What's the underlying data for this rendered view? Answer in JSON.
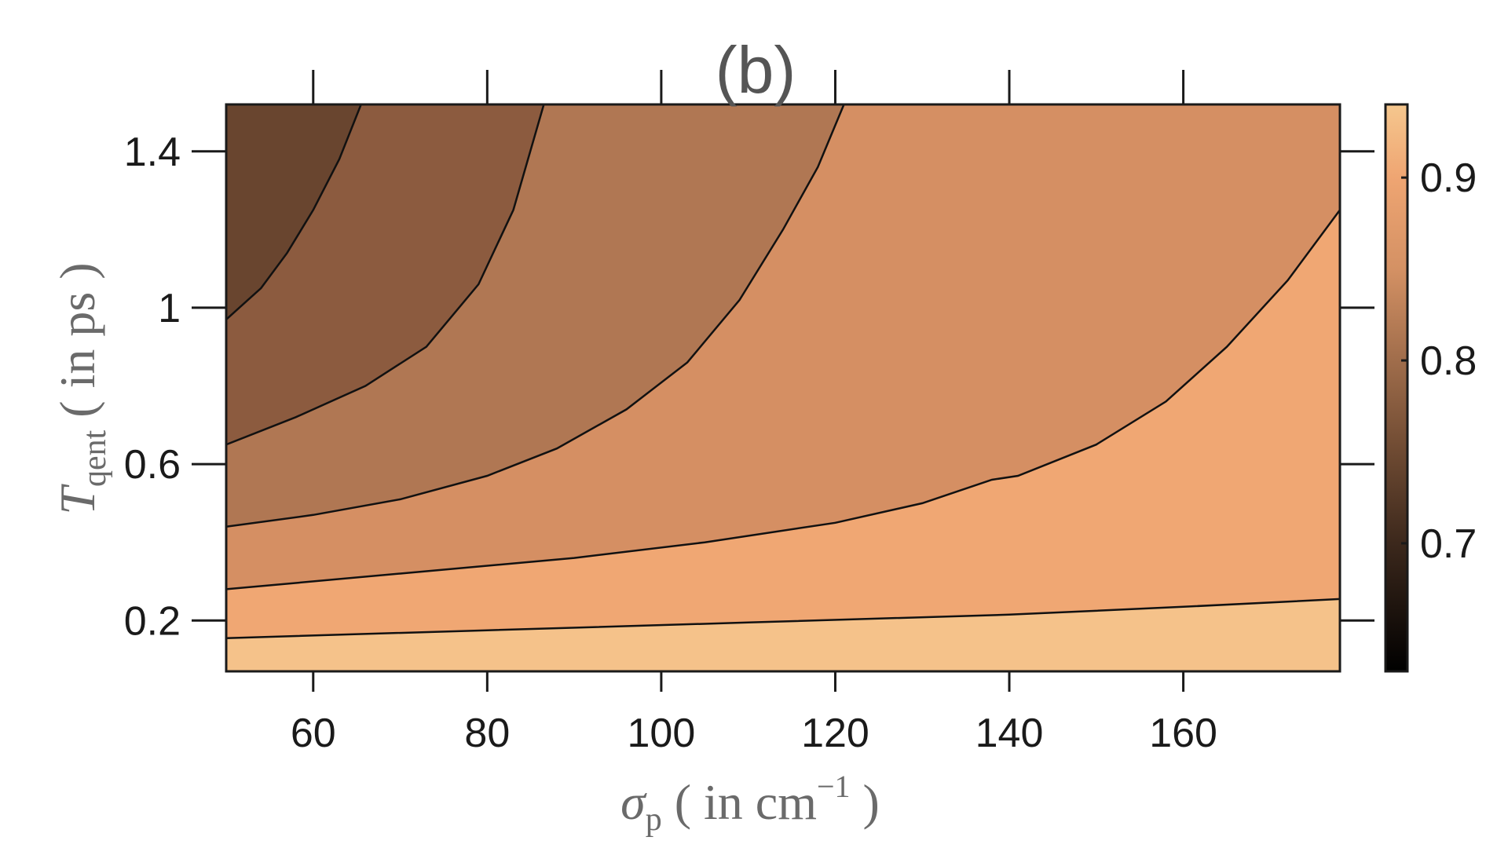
{
  "chart_data": {
    "type": "contour",
    "title": "(b)",
    "xlabel": {
      "main": "σ",
      "sub": "p",
      "rest": " ( in cm",
      "sup": "−1",
      "close": " )"
    },
    "ylabel": {
      "main": "T",
      "sub": "qent",
      "rest": " ( in ps )"
    },
    "xlim": [
      50,
      178
    ],
    "ylim": [
      0.07,
      1.52
    ],
    "xticks": [
      60,
      80,
      100,
      120,
      140,
      160
    ],
    "xtick_labels": [
      "60",
      "80",
      "100",
      "120",
      "140",
      "160"
    ],
    "yticks": [
      0.2,
      0.6,
      1.0,
      1.4
    ],
    "ytick_labels": [
      "0.2",
      "0.6",
      "1",
      "1.4"
    ],
    "colorbar": {
      "range": [
        0.63,
        0.94
      ],
      "ticks": [
        0.7,
        0.8,
        0.9
      ],
      "tick_labels": [
        "0.7",
        "0.8",
        "0.9"
      ],
      "stops": [
        {
          "v": 0.63,
          "color": "#000000"
        },
        {
          "v": 0.7,
          "color": "#3c281c"
        },
        {
          "v": 0.75,
          "color": "#6e4a32"
        },
        {
          "v": 0.8,
          "color": "#a06d4b"
        },
        {
          "v": 0.85,
          "color": "#d49164"
        },
        {
          "v": 0.9,
          "color": "#efa572"
        },
        {
          "v": 0.94,
          "color": "#f5c78e"
        }
      ]
    },
    "grid": false,
    "contour_levels": [
      {
        "level": 0.75,
        "fill_above": "#69452f",
        "points": [
          [
            50,
            0.97
          ],
          [
            54,
            1.05
          ],
          [
            57,
            1.14
          ],
          [
            60,
            1.25
          ],
          [
            63,
            1.38
          ],
          [
            65.5,
            1.52
          ]
        ]
      },
      {
        "level": 0.8,
        "fill_above": "#8c5b3f",
        "points": [
          [
            50,
            0.65
          ],
          [
            58,
            0.72
          ],
          [
            66,
            0.8
          ],
          [
            73,
            0.9
          ],
          [
            79,
            1.06
          ],
          [
            83,
            1.25
          ],
          [
            86.5,
            1.52
          ]
        ]
      },
      {
        "level": 0.85,
        "fill_above": "#b07753",
        "points": [
          [
            50,
            0.44
          ],
          [
            60,
            0.47
          ],
          [
            70,
            0.51
          ],
          [
            80,
            0.57
          ],
          [
            88,
            0.64
          ],
          [
            96,
            0.74
          ],
          [
            103,
            0.86
          ],
          [
            109,
            1.02
          ],
          [
            114,
            1.2
          ],
          [
            118,
            1.36
          ],
          [
            121,
            1.52
          ]
        ]
      },
      {
        "level": 0.9,
        "fill_above": "#d58f63",
        "points": [
          [
            50,
            0.28
          ],
          [
            70,
            0.32
          ],
          [
            90,
            0.36
          ],
          [
            105,
            0.4
          ],
          [
            120,
            0.45
          ],
          [
            130,
            0.5
          ],
          [
            138,
            0.56
          ],
          [
            141,
            0.57
          ],
          [
            150,
            0.65
          ],
          [
            158,
            0.76
          ],
          [
            165,
            0.9
          ],
          [
            172,
            1.07
          ],
          [
            178,
            1.25
          ]
        ]
      },
      {
        "level": 0.92,
        "fill_above": "#f0a773",
        "points": [
          [
            50,
            0.155
          ],
          [
            80,
            0.175
          ],
          [
            110,
            0.195
          ],
          [
            140,
            0.215
          ],
          [
            160,
            0.235
          ],
          [
            178,
            0.255
          ]
        ]
      }
    ],
    "fill_below": "#f5c28a"
  }
}
